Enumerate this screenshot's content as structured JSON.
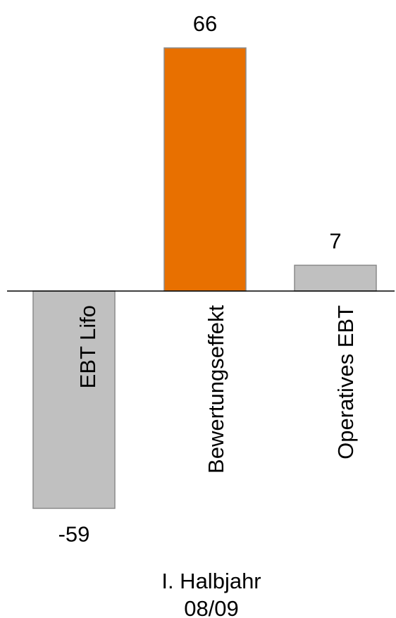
{
  "chart_data": {
    "type": "bar",
    "categories": [
      "EBT Lifo",
      "Bewertungseffekt",
      "Operatives EBT"
    ],
    "values": [
      -59,
      66,
      7
    ],
    "data_labels": [
      "-59",
      "66",
      "7"
    ],
    "bar_colors": [
      "#c0c0c0",
      "#e87000",
      "#c0c0c0"
    ],
    "bar_outline": "#8a8a8a",
    "period_label": [
      "I. Halbjahr",
      "08/09"
    ],
    "title": "",
    "xlabel": "",
    "ylabel": "",
    "grid": false,
    "legend": "none"
  }
}
